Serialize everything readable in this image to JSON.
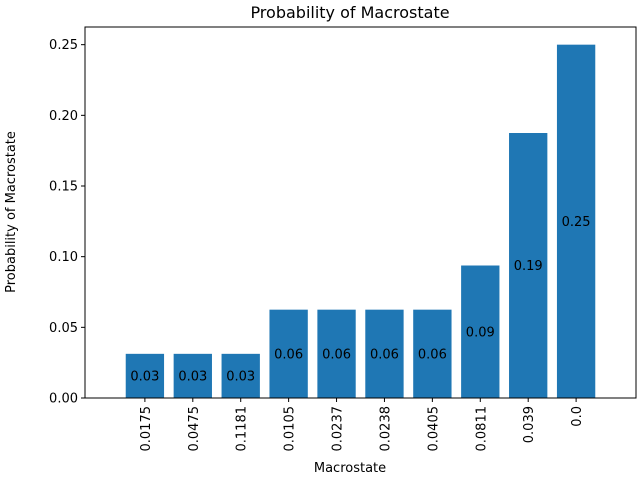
{
  "chart_data": {
    "type": "bar",
    "title": "Probability of Macrostate",
    "xlabel": "Macrostate",
    "ylabel": "Probability of Macrostate",
    "categories": [
      "0.0175",
      "0.0475",
      "0.1181",
      "0.0105",
      "0.0237",
      "0.0238",
      "0.0405",
      "0.0811",
      "0.039",
      "0.0"
    ],
    "values": [
      0.03125,
      0.03125,
      0.03125,
      0.0625,
      0.0625,
      0.0625,
      0.0625,
      0.09375,
      0.1875,
      0.25
    ],
    "data_labels": [
      "0.03",
      "0.03",
      "0.03",
      "0.06",
      "0.06",
      "0.06",
      "0.06",
      "0.09",
      "0.19",
      "0.25"
    ],
    "ylim": [
      0,
      0.2625
    ],
    "yticks": [
      "0.00",
      "0.05",
      "0.10",
      "0.15",
      "0.20",
      "0.25"
    ],
    "ytick_values": [
      0,
      0.05,
      0.1,
      0.15,
      0.2,
      0.25
    ],
    "bar_color": "#1f77b4",
    "grid": false,
    "legend": "none"
  }
}
